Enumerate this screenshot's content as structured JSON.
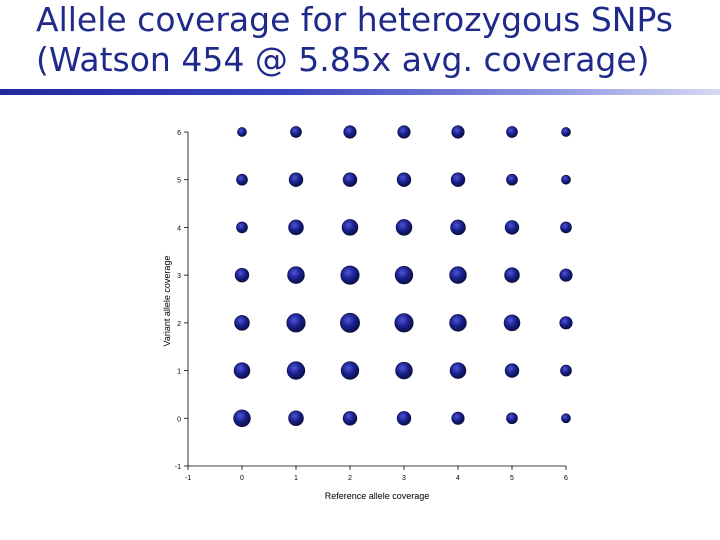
{
  "slide": {
    "title_line1": "Allele coverage for heterozygous SNPs",
    "title_line2": "(Watson 454 @ 5.85x avg. coverage)"
  },
  "colors": {
    "title": "#1f2a8a",
    "point": "#1a1f8c",
    "rule": "#1f2aa0"
  },
  "chart_data": {
    "type": "scatter",
    "title": "",
    "xlabel": "Reference allele coverage",
    "ylabel": "Variant allele coverage",
    "xlim": [
      -1,
      6
    ],
    "ylim": [
      -1,
      6
    ],
    "xticks": [
      -1,
      0,
      1,
      2,
      3,
      4,
      5,
      6
    ],
    "yticks": [
      -1,
      0,
      1,
      2,
      3,
      4,
      5,
      6
    ],
    "grid": false,
    "size_encoding": "marker area reflects number of SNPs (relative, 1–10)",
    "points": [
      {
        "x": 0,
        "y": 0,
        "size": 7
      },
      {
        "x": 1,
        "y": 0,
        "size": 5
      },
      {
        "x": 2,
        "y": 0,
        "size": 4
      },
      {
        "x": 3,
        "y": 0,
        "size": 4
      },
      {
        "x": 4,
        "y": 0,
        "size": 3
      },
      {
        "x": 5,
        "y": 0,
        "size": 2
      },
      {
        "x": 6,
        "y": 0,
        "size": 1
      },
      {
        "x": 0,
        "y": 1,
        "size": 6
      },
      {
        "x": 1,
        "y": 1,
        "size": 8
      },
      {
        "x": 2,
        "y": 1,
        "size": 8
      },
      {
        "x": 3,
        "y": 1,
        "size": 7
      },
      {
        "x": 4,
        "y": 1,
        "size": 6
      },
      {
        "x": 5,
        "y": 1,
        "size": 4
      },
      {
        "x": 6,
        "y": 1,
        "size": 2
      },
      {
        "x": 0,
        "y": 2,
        "size": 5
      },
      {
        "x": 1,
        "y": 2,
        "size": 9
      },
      {
        "x": 2,
        "y": 2,
        "size": 10
      },
      {
        "x": 3,
        "y": 2,
        "size": 9
      },
      {
        "x": 4,
        "y": 2,
        "size": 7
      },
      {
        "x": 5,
        "y": 2,
        "size": 6
      },
      {
        "x": 6,
        "y": 2,
        "size": 3
      },
      {
        "x": 0,
        "y": 3,
        "size": 4
      },
      {
        "x": 1,
        "y": 3,
        "size": 7
      },
      {
        "x": 2,
        "y": 3,
        "size": 9
      },
      {
        "x": 3,
        "y": 3,
        "size": 8
      },
      {
        "x": 4,
        "y": 3,
        "size": 7
      },
      {
        "x": 5,
        "y": 3,
        "size": 5
      },
      {
        "x": 6,
        "y": 3,
        "size": 3
      },
      {
        "x": 0,
        "y": 4,
        "size": 2
      },
      {
        "x": 1,
        "y": 4,
        "size": 5
      },
      {
        "x": 2,
        "y": 4,
        "size": 6
      },
      {
        "x": 3,
        "y": 4,
        "size": 6
      },
      {
        "x": 4,
        "y": 4,
        "size": 5
      },
      {
        "x": 5,
        "y": 4,
        "size": 4
      },
      {
        "x": 6,
        "y": 4,
        "size": 2
      },
      {
        "x": 0,
        "y": 5,
        "size": 2
      },
      {
        "x": 1,
        "y": 5,
        "size": 4
      },
      {
        "x": 2,
        "y": 5,
        "size": 4
      },
      {
        "x": 3,
        "y": 5,
        "size": 4
      },
      {
        "x": 4,
        "y": 5,
        "size": 4
      },
      {
        "x": 5,
        "y": 5,
        "size": 2
      },
      {
        "x": 6,
        "y": 5,
        "size": 1
      },
      {
        "x": 0,
        "y": 6,
        "size": 1
      },
      {
        "x": 1,
        "y": 6,
        "size": 2
      },
      {
        "x": 2,
        "y": 6,
        "size": 3
      },
      {
        "x": 3,
        "y": 6,
        "size": 3
      },
      {
        "x": 4,
        "y": 6,
        "size": 3
      },
      {
        "x": 5,
        "y": 6,
        "size": 2
      },
      {
        "x": 6,
        "y": 6,
        "size": 1
      }
    ]
  }
}
